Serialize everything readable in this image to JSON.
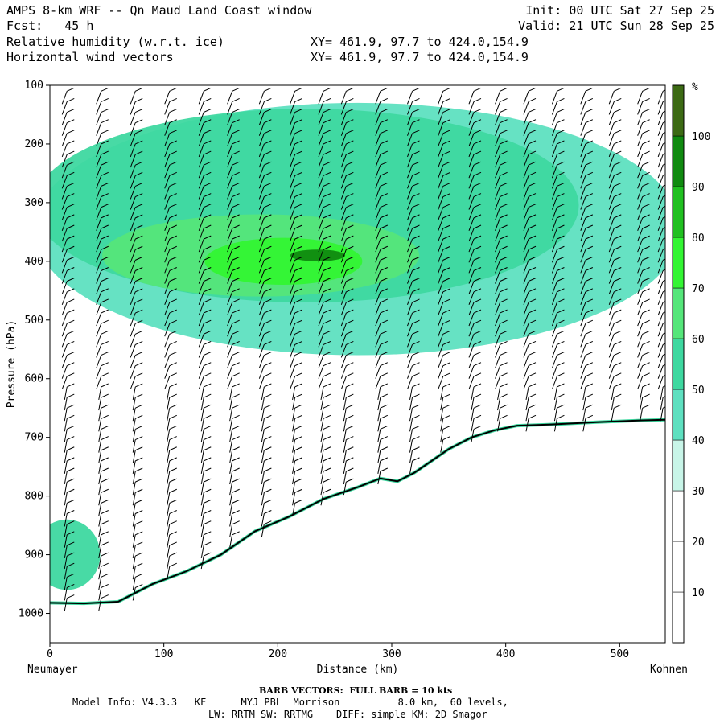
{
  "header": {
    "title": "AMPS 8-km WRF -- Qn Maud Land Coast window",
    "fcst": "Fcst:   45 h",
    "init": "Init: 00 UTC Sat 27 Sep 25",
    "valid": "Valid: 21 UTC Sun 28 Sep 25",
    "field1": "Relative humidity (w.r.t. ice)",
    "field2": "Horizontal wind vectors",
    "xy1": "XY= 461.9, 97.7 to 424.0,154.9",
    "xy2": "XY= 461.9, 97.7 to 424.0,154.9"
  },
  "chart_data": {
    "type": "heatmap",
    "xlabel": "Distance (km)",
    "ylabel": "Pressure (hPa)",
    "xlim": [
      0,
      540
    ],
    "ylim": [
      1050,
      100
    ],
    "x_ticks": [
      0,
      100,
      200,
      300,
      400,
      500
    ],
    "y_ticks": [
      100,
      200,
      300,
      400,
      500,
      600,
      700,
      800,
      900,
      1000
    ],
    "x_endpoint_labels": {
      "left": "Neumayer",
      "right": "Kohnen"
    },
    "colorbar": {
      "unit": "%",
      "levels": [
        10,
        20,
        30,
        40,
        50,
        60,
        70,
        80,
        90,
        100
      ],
      "colors": [
        "#ffffff",
        "#ffffff",
        "#ffffff",
        "#c8f5e8",
        "#5ee0c0",
        "#3ed8a0",
        "#55e67a",
        "#33f533",
        "#20c020",
        "#108a10",
        "#3c6a14"
      ]
    },
    "terrain_surface": {
      "x": [
        0,
        30,
        60,
        90,
        120,
        150,
        180,
        210,
        240,
        270,
        290,
        305,
        320,
        335,
        350,
        370,
        390,
        410,
        440,
        480,
        520,
        540
      ],
      "p": [
        982,
        983,
        980,
        950,
        928,
        900,
        860,
        835,
        805,
        785,
        770,
        775,
        760,
        740,
        720,
        700,
        688,
        680,
        678,
        674,
        671,
        670
      ]
    },
    "rh_regions": [
      {
        "level": 40,
        "x": [
          0,
          540
        ],
        "p": [
          130,
          560
        ]
      },
      {
        "level": 50,
        "x": [
          0,
          450
        ],
        "p": [
          140,
          470
        ]
      },
      {
        "level": 60,
        "x": [
          60,
          310
        ],
        "p": [
          320,
          460
        ]
      },
      {
        "level": 70,
        "x": [
          150,
          260
        ],
        "p": [
          360,
          440
        ]
      },
      {
        "level": 90,
        "x": [
          225,
          245
        ],
        "p": [
          380,
          400
        ]
      },
      {
        "level": 50,
        "x": [
          0,
          30
        ],
        "p": [
          840,
          960
        ]
      }
    ],
    "wind_columns_x": [
      15,
      45,
      75,
      105,
      135,
      160,
      188,
      215,
      240,
      260,
      290,
      318,
      345,
      372,
      395,
      420,
      445,
      470,
      495,
      520,
      538
    ]
  },
  "footer": {
    "barb": "BARB VECTORS:  FULL BARB = 10 kts",
    "model_line1": "Model Info: V4.3.3   KF      MYJ PBL  Morrison          8.0 km,  60 levels,",
    "model_line2": "LW: RRTM SW: RRTMG    DIFF: simple KM: 2D Smagor"
  }
}
